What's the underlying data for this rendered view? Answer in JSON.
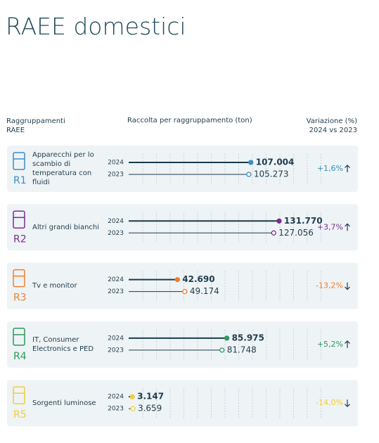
{
  "chart_data": {
    "type": "lollipop",
    "title": "RAEE domestici",
    "group_header": "Raggruppamenti RAEE",
    "x_label": "Raccolta per raggruppamento (ton)",
    "change_header": "Variazione (%) 2024 vs 2023",
    "categories": [
      "Apparecchi per lo scambio di temperatura con fluidi",
      "Altri grandi bianchi",
      "Tv e monitor",
      "IT, Consumer Electronics e PED",
      "Sorgenti luminose"
    ],
    "codes": [
      "R1",
      "R2",
      "R3",
      "R4",
      "R5"
    ],
    "colors": [
      "#3a8fc0",
      "#7b2d8e",
      "#f07f2a",
      "#2a9a5a",
      "#f2cc3a"
    ],
    "series": [
      {
        "name": "2024",
        "values": [
          107004,
          131770,
          42690,
          85975,
          3147
        ],
        "value_labels": [
          "107.004",
          "131.770",
          "42.690",
          "85.975",
          "3.147"
        ]
      },
      {
        "name": "2023",
        "values": [
          105273,
          127056,
          49174,
          81748,
          3659
        ],
        "value_labels": [
          "105.273",
          "127.056",
          "49.174",
          "81.748",
          "3.659"
        ]
      }
    ],
    "changes": [
      1.6,
      3.7,
      -13.2,
      5.2,
      -14.0
    ],
    "change_labels": [
      "+1,6%",
      "+3,7%",
      "-13,2%",
      "+5,2%",
      "-14,0%"
    ],
    "xlim": [
      0,
      170000
    ]
  }
}
